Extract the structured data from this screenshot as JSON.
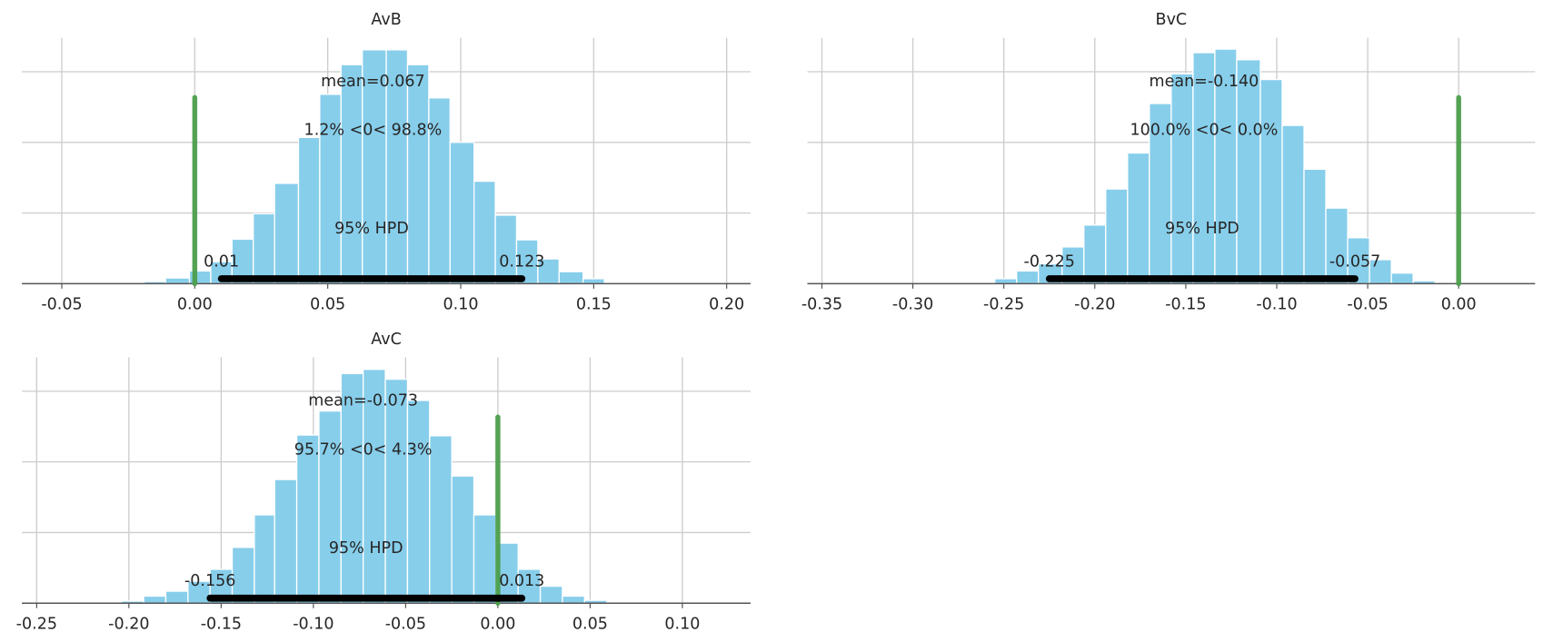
{
  "chart_data": [
    {
      "type": "histogram",
      "title": "AvB",
      "color": "#87ceeb",
      "bins": [
        -0.019,
        -0.011,
        -0.002,
        0.006,
        0.014,
        0.022,
        0.03,
        0.039,
        0.047,
        0.055,
        0.063,
        0.072,
        0.08,
        0.088,
        0.096,
        0.105,
        0.113,
        0.121,
        0.129,
        0.137,
        0.146,
        0.154
      ],
      "counts": [
        0.03,
        0.08,
        0.18,
        0.31,
        0.63,
        0.99,
        1.42,
        2.07,
        2.68,
        3.1,
        3.31,
        3.31,
        3.1,
        2.63,
        2.0,
        1.45,
        0.97,
        0.62,
        0.35,
        0.17,
        0.07
      ],
      "xlim": [
        -0.065,
        0.209
      ],
      "xticks": [
        -0.05,
        {
          "value": 0,
          "label": "0.00"
        },
        0.05,
        {
          "value": 0.1,
          "label": "0.10"
        },
        0.15,
        {
          "value": 0.2,
          "label": "0.20"
        }
      ],
      "ylim": [
        0,
        3.48
      ],
      "yticks": [
        0,
        1,
        2,
        3
      ],
      "grid": true,
      "mean": 0.067,
      "mean_label": "mean=0.067",
      "ref_val": 0,
      "ref_label": "1.2% <0< 98.8%",
      "ref_color": "#4c9f4c",
      "hpd": [
        0.01,
        0.123
      ],
      "hpd_label": "95% HPD",
      "hpd_color": "#000000"
    },
    {
      "type": "histogram",
      "title": "BvC",
      "color": "#87ceeb",
      "bins": [
        -0.267,
        -0.255,
        -0.243,
        -0.231,
        -0.218,
        -0.206,
        -0.194,
        -0.182,
        -0.17,
        -0.158,
        -0.146,
        -0.134,
        -0.122,
        -0.109,
        -0.097,
        -0.085,
        -0.073,
        -0.061,
        -0.049,
        -0.037,
        -0.025,
        -0.013
      ],
      "counts": [
        0.01,
        0.07,
        0.18,
        0.28,
        0.52,
        0.83,
        1.34,
        1.85,
        2.55,
        2.97,
        3.27,
        3.32,
        3.17,
        2.89,
        2.24,
        1.62,
        1.07,
        0.65,
        0.34,
        0.15,
        0.04
      ],
      "xlim": [
        -0.358,
        0.042
      ],
      "xticks": [
        -0.35,
        {
          "value": -0.3,
          "label": "-0.30"
        },
        -0.25,
        {
          "value": -0.2,
          "label": "-0.20"
        },
        -0.15,
        {
          "value": -0.1,
          "label": "-0.10"
        },
        -0.05,
        {
          "value": 0,
          "label": "0.00"
        }
      ],
      "ylim": [
        0,
        3.48
      ],
      "yticks": [
        0,
        1,
        2,
        3
      ],
      "grid": true,
      "mean": -0.14,
      "mean_label": "mean=-0.140",
      "ref_val": 0,
      "ref_label": "100.0% <0< 0.0%",
      "ref_color": "#4c9f4c",
      "hpd": [
        -0.225,
        -0.057
      ],
      "hpd_label": "95% HPD",
      "hpd_color": "#000000"
    },
    {
      "type": "histogram",
      "title": "AvC",
      "color": "#87ceeb",
      "bins": [
        -0.204,
        -0.192,
        -0.18,
        -0.168,
        -0.156,
        -0.144,
        -0.132,
        -0.121,
        -0.109,
        -0.097,
        -0.085,
        -0.073,
        -0.061,
        -0.049,
        -0.037,
        -0.025,
        -0.013,
        -0.001,
        0.011,
        0.023,
        0.035,
        0.047,
        0.059
      ],
      "counts": [
        0.03,
        0.1,
        0.17,
        0.31,
        0.48,
        0.79,
        1.25,
        1.75,
        2.38,
        2.72,
        3.25,
        3.31,
        3.17,
        2.87,
        2.37,
        1.8,
        1.25,
        0.85,
        0.48,
        0.24,
        0.1,
        0.04
      ],
      "xlim": [
        -0.258,
        0.137
      ],
      "xticks": [
        -0.25,
        {
          "value": -0.2,
          "label": "-0.20"
        },
        -0.15,
        {
          "value": -0.1,
          "label": "-0.10"
        },
        -0.05,
        {
          "value": 0,
          "label": "0.00"
        },
        0.05,
        {
          "value": 0.1,
          "label": "0.10"
        }
      ],
      "ylim": [
        0,
        3.48
      ],
      "yticks": [
        0,
        1,
        2,
        3
      ],
      "grid": true,
      "mean": -0.073,
      "mean_label": "mean=-0.073",
      "ref_val": 0,
      "ref_label": "95.7% <0< 4.3%",
      "ref_color": "#4c9f4c",
      "hpd": [
        -0.156,
        0.013
      ],
      "hpd_label": "95% HPD",
      "hpd_color": "#000000"
    }
  ]
}
